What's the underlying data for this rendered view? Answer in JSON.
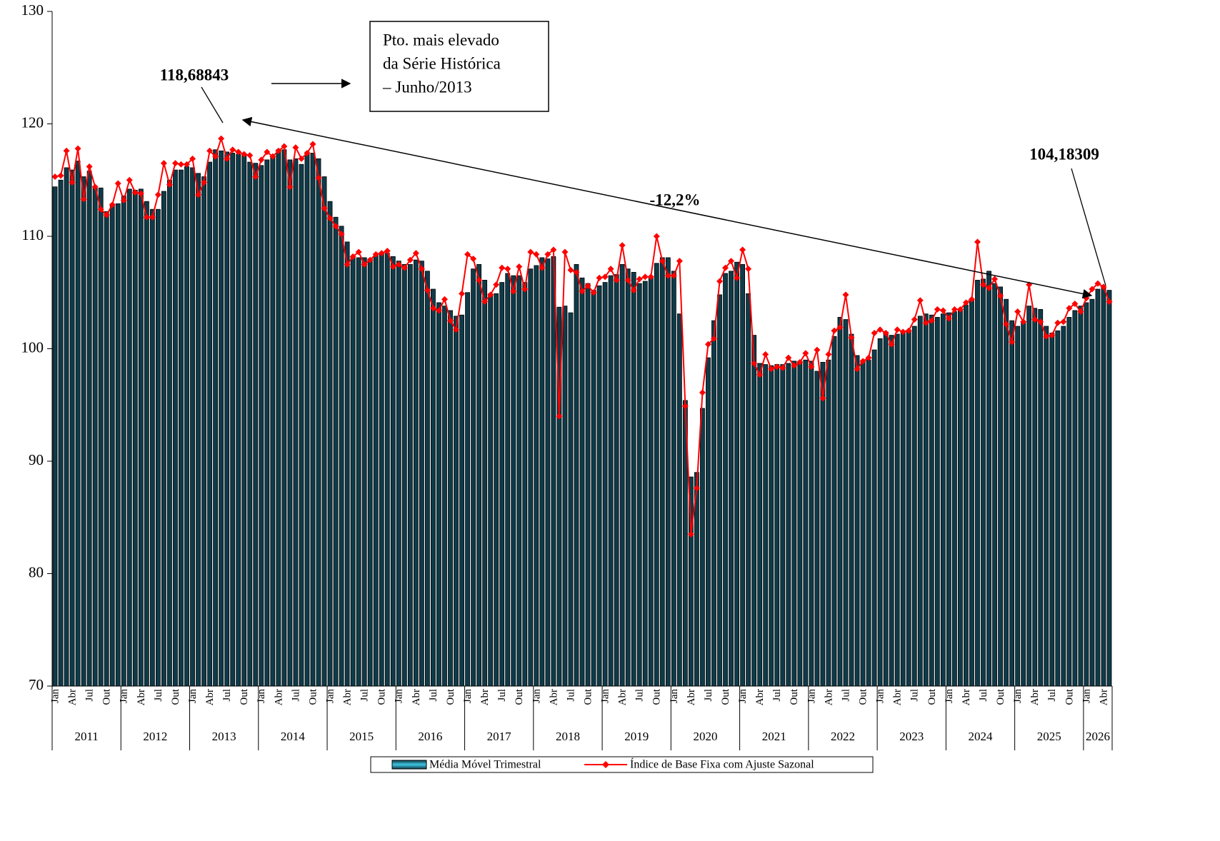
{
  "chart_data": {
    "type": "bar",
    "categories": [
      "Jan",
      null,
      null,
      "Abr",
      null,
      null,
      "Jul",
      null,
      null,
      "Out",
      null,
      null,
      "Jan",
      null,
      null,
      "Abr",
      null,
      null,
      "Jul",
      null,
      null,
      "Out",
      null,
      null,
      "Jan",
      null,
      null,
      "Abr",
      null,
      null,
      "Jul",
      null,
      null,
      "Out",
      null,
      null,
      "Jan",
      null,
      null,
      "Abr",
      null,
      null,
      "Jul",
      null,
      null,
      "Out",
      null,
      null,
      "Jan",
      null,
      null,
      "Abr",
      null,
      null,
      "Jul",
      null,
      null,
      "Out",
      null,
      null,
      "Jan",
      null,
      null,
      "Abr",
      null,
      null,
      "Jul",
      null,
      null,
      "Out",
      null,
      null,
      "Jan",
      null,
      null,
      "Abr",
      null,
      null,
      "Jul",
      null,
      null,
      "Out",
      null,
      null,
      "Jan",
      null,
      null,
      "Abr",
      null,
      null,
      "Jul",
      null,
      null,
      "Out",
      null,
      null,
      "Jan",
      null,
      null,
      "Abr",
      null,
      null,
      "Jul",
      null,
      null,
      "Out",
      null,
      null,
      "Jan",
      null,
      null,
      "Abr",
      null,
      null,
      "Jul",
      null,
      null,
      "Out",
      null,
      null,
      "Jan",
      null,
      null,
      "Abr",
      null,
      null,
      "Jul",
      null,
      null,
      "Out",
      null,
      null,
      "Jan",
      null,
      null,
      "Abr",
      null,
      null,
      "Jul",
      null,
      null,
      "Out",
      null,
      null,
      "Jan",
      null,
      null,
      "Abr",
      null,
      null,
      "Jul",
      null,
      null,
      "Out",
      null,
      null,
      "Jan",
      null,
      null,
      "Abr",
      null,
      null,
      "Jul",
      null,
      null,
      "Out",
      null,
      null,
      "Jan",
      null,
      null,
      "Abr",
      null,
      null,
      "Jul",
      null,
      null,
      "Out",
      null,
      null,
      "Jan",
      null,
      null,
      "Abr",
      null
    ],
    "years": [
      "2011",
      "2012",
      "2013",
      "2014",
      "2015",
      "2016",
      "2017",
      "2018",
      "2019",
      "2020",
      "2021",
      "2022",
      "2023",
      "2024",
      "2025",
      "2026"
    ],
    "series": [
      {
        "name": "Média Móvel Trimestral",
        "type": "bar",
        "color": "#0e3b4a",
        "values": [
          114.4,
          115.0,
          116.1,
          115.9,
          116.7,
          115.3,
          115.8,
          114.3,
          114.3,
          112.2,
          112.9,
          112.9,
          113.6,
          114.2,
          114.1,
          114.2,
          113.1,
          112.4,
          112.4,
          114.0,
          115.0,
          115.9,
          115.9,
          116.2,
          116.1,
          115.6,
          115.3,
          116.6,
          117.7,
          117.6,
          117.5,
          117.4,
          117.3,
          117.2,
          116.6,
          116.5,
          116.3,
          116.8,
          117.1,
          117.7,
          117.7,
          116.8,
          116.9,
          116.4,
          117.5,
          117.4,
          116.9,
          115.3,
          113.1,
          111.7,
          110.9,
          109.5,
          108.2,
          108.1,
          108.1,
          108.0,
          108.3,
          108.5,
          108.5,
          108.2,
          107.8,
          107.5,
          107.5,
          107.9,
          107.8,
          106.9,
          105.3,
          104.1,
          103.8,
          103.4,
          102.9,
          103.0,
          105.0,
          107.1,
          107.5,
          106.1,
          104.9,
          104.9,
          105.9,
          106.7,
          106.5,
          106.5,
          105.9,
          107.1,
          107.4,
          108.1,
          108.0,
          108.2,
          103.7,
          103.8,
          103.2,
          107.5,
          106.3,
          105.8,
          105.2,
          105.6,
          105.9,
          106.5,
          106.6,
          107.5,
          107.1,
          106.8,
          105.8,
          106.0,
          106.3,
          107.6,
          108.1,
          108.1,
          106.9,
          103.1,
          95.4,
          88.6,
          89.0,
          94.7,
          99.2,
          102.5,
          104.8,
          106.7,
          106.9,
          107.7,
          107.5,
          104.9,
          101.2,
          98.7,
          98.6,
          98.5,
          98.6,
          98.6,
          98.7,
          98.9,
          98.9,
          99.0,
          98.9,
          98.0,
          98.8,
          99.0,
          101.1,
          102.8,
          102.6,
          101.3,
          99.4,
          98.8,
          99.0,
          99.9,
          100.9,
          101.5,
          101.2,
          101.3,
          101.6,
          101.6,
          102.0,
          102.9,
          103.1,
          103.0,
          102.8,
          103.1,
          103.2,
          103.3,
          103.4,
          103.9,
          104.3,
          106.1,
          106.2,
          106.9,
          105.8,
          105.5,
          104.4,
          102.5,
          102.0,
          102.3,
          103.8,
          103.6,
          103.5,
          102.0,
          101.4,
          101.6,
          102.0,
          102.8,
          103.4,
          103.8,
          104.1,
          104.4,
          105.3,
          105.4,
          105.2
        ]
      },
      {
        "name": "Índice de Base Fixa com Ajuste Sazonal",
        "type": "line",
        "color": "#ff0000",
        "values": [
          115.3,
          115.4,
          117.6,
          114.8,
          117.8,
          113.3,
          116.2,
          114.4,
          112.4,
          111.9,
          112.8,
          114.7,
          113.2,
          115.0,
          113.9,
          113.8,
          111.7,
          111.7,
          113.7,
          116.5,
          114.6,
          116.5,
          116.4,
          116.4,
          116.9,
          113.7,
          114.8,
          117.6,
          117.1,
          118.68843,
          116.9,
          117.7,
          117.5,
          117.3,
          117.2,
          115.3,
          116.8,
          117.5,
          117.1,
          117.6,
          118.0,
          114.4,
          117.9,
          116.9,
          117.4,
          118.2,
          115.2,
          112.5,
          111.6,
          110.9,
          110.2,
          107.5,
          108.2,
          108.6,
          107.5,
          107.9,
          108.4,
          108.5,
          108.7,
          107.3,
          107.5,
          107.2,
          107.9,
          108.5,
          107.1,
          105.2,
          103.6,
          103.4,
          104.4,
          102.5,
          101.7,
          104.9,
          108.4,
          108.0,
          106.1,
          104.2,
          104.8,
          105.7,
          107.2,
          107.1,
          105.1,
          107.3,
          105.3,
          108.6,
          108.4,
          107.2,
          108.4,
          108.8,
          94.0,
          108.6,
          107.0,
          106.8,
          105.1,
          105.6,
          105.0,
          106.3,
          106.4,
          107.1,
          106.1,
          109.2,
          106.1,
          105.2,
          106.2,
          106.4,
          106.4,
          110.0,
          107.8,
          106.5,
          106.5,
          107.8,
          94.9,
          83.5,
          87.6,
          96.1,
          100.4,
          100.9,
          106.0,
          107.2,
          107.8,
          106.3,
          108.8,
          107.1,
          98.7,
          97.7,
          99.5,
          98.2,
          98.4,
          98.3,
          99.2,
          98.5,
          98.8,
          99.6,
          98.4,
          99.9,
          95.6,
          99.5,
          101.6,
          101.9,
          104.8,
          101.0,
          98.2,
          98.9,
          99.2,
          101.4,
          101.7,
          101.4,
          100.4,
          101.7,
          101.5,
          101.6,
          102.6,
          104.3,
          102.3,
          102.5,
          103.5,
          103.4,
          102.7,
          103.5,
          103.5,
          104.1,
          104.4,
          109.5,
          105.7,
          105.4,
          106.2,
          104.7,
          102.2,
          100.6,
          103.3,
          102.4,
          105.7,
          102.6,
          102.4,
          101.1,
          101.2,
          102.3,
          102.4,
          103.6,
          104.0,
          103.3,
          104.5,
          105.3,
          105.8,
          105.5,
          104.18309
        ]
      }
    ],
    "ylim": [
      70,
      130
    ],
    "yticks": [
      70,
      80,
      90,
      100,
      110,
      120,
      130
    ],
    "annotations": [
      "118,68843",
      "104,18309",
      "-12,2%",
      "Pto. mais elevado",
      "da Série Histórica",
      "– Junho/2013"
    ],
    "legend": "bottom"
  }
}
